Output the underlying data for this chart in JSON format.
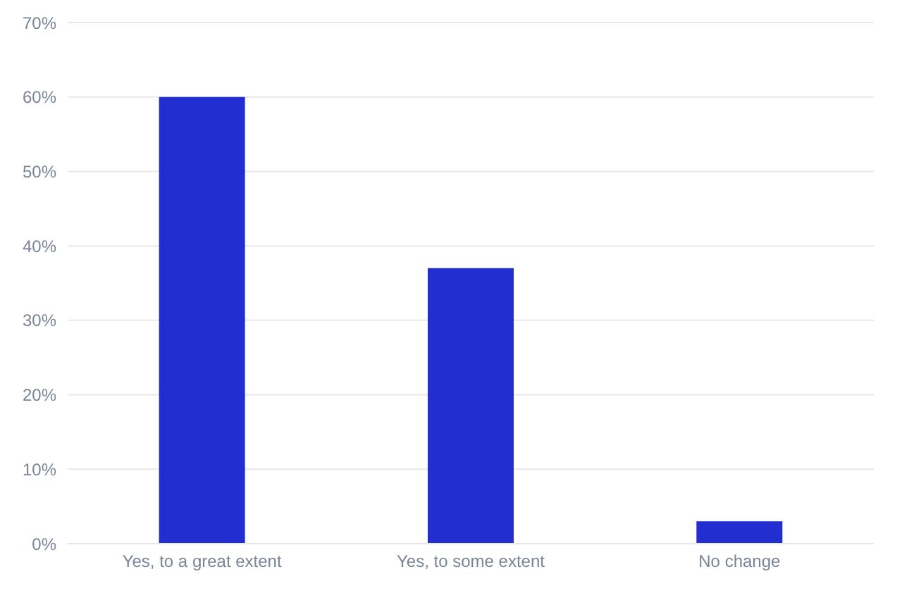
{
  "chart_data": {
    "type": "bar",
    "categories": [
      "Yes, to a great extent",
      "Yes, to some extent",
      "No change"
    ],
    "values": [
      60,
      37,
      3
    ],
    "color": "#222ecf",
    "ylim": [
      0,
      70
    ],
    "yticks": [
      {
        "value": 0,
        "label": "0%"
      },
      {
        "value": 10,
        "label": "10%"
      },
      {
        "value": 20,
        "label": "20%"
      },
      {
        "value": 30,
        "label": "30%"
      },
      {
        "value": 40,
        "label": "40%"
      },
      {
        "value": 50,
        "label": "50%"
      },
      {
        "value": 60,
        "label": "60%"
      },
      {
        "value": 70,
        "label": "70%"
      }
    ],
    "grid": "y"
  }
}
